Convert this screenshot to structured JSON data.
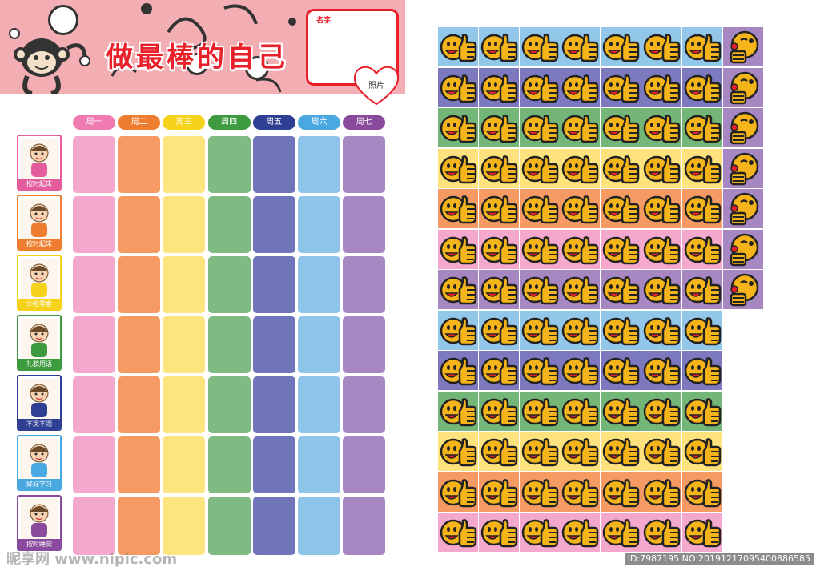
{
  "chart": {
    "title": "做最棒的自己",
    "name_label": "名字",
    "photo_label": "照片",
    "days": [
      {
        "label": "周一",
        "color": "#f07bb1",
        "cell": "#f4a8cd"
      },
      {
        "label": "周二",
        "color": "#ef7d2f",
        "cell": "#f49a62"
      },
      {
        "label": "周三",
        "color": "#f6d21a",
        "cell": "#fde480"
      },
      {
        "label": "周四",
        "color": "#3d9a3f",
        "cell": "#7fba82"
      },
      {
        "label": "周五",
        "color": "#2f3f93",
        "cell": "#6f75b8"
      },
      {
        "label": "周六",
        "color": "#4aa8e0",
        "cell": "#8ec4ea"
      },
      {
        "label": "周七",
        "color": "#8a4b9e",
        "cell": "#a787c1"
      }
    ],
    "habits": [
      {
        "label": "按时起床",
        "color": "#e45c9c",
        "icon": "alarm-clock-kids-icon"
      },
      {
        "label": "按时起床",
        "color": "#ef7d2f",
        "icon": "kids-waking-icon"
      },
      {
        "label": "少吃零食",
        "color": "#f6d21a",
        "icon": "girl-lollipop-icon"
      },
      {
        "label": "礼貌用语",
        "color": "#3d9a3f",
        "icon": "mother-child-icon"
      },
      {
        "label": "不哭不闹",
        "color": "#2f3f93",
        "icon": "crying-baby-icon"
      },
      {
        "label": "好好学习",
        "color": "#4aa8e0",
        "icon": "boy-reading-icon"
      },
      {
        "label": "按时睡觉",
        "color": "#8a4b9e",
        "icon": "sleeping-moon-icon"
      }
    ]
  },
  "stickers": {
    "row_colors": [
      "#93c7ea",
      "#7d79bf",
      "#74b677",
      "#fde27d",
      "#f49a62",
      "#f4a8cd",
      "#a787c1",
      "#93c7ea",
      "#7d79bf",
      "#74b677",
      "#fde27d",
      "#f49a62",
      "#f4a8cd"
    ],
    "column8_color": "#a787c1",
    "face_color": "#f5b41a",
    "icon": "thumbs-up-smiley-icon",
    "face_only_icon": "winking-face-icon"
  },
  "watermark": "昵享网 www.nipic.com",
  "image_id": "ID:7987195 NO:20191217095400886585"
}
